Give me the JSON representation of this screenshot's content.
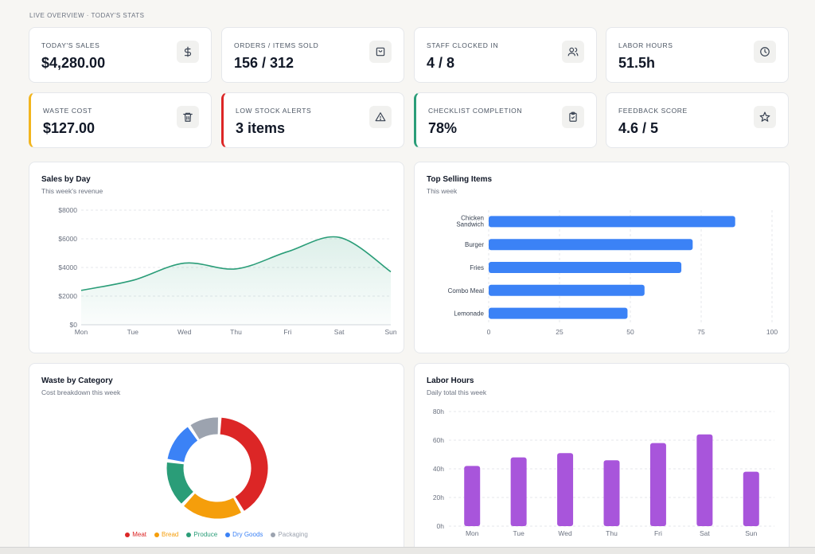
{
  "header": {
    "title": "LIVE OVERVIEW · TODAY'S STATS"
  },
  "stats": [
    {
      "label": "TODAY'S SALES",
      "value": "$4,280.00",
      "icon": "dollar-icon"
    },
    {
      "label": "ORDERS / ITEMS SOLD",
      "value": "156 / 312",
      "icon": "bag-icon"
    },
    {
      "label": "STAFF CLOCKED IN",
      "value": "4 / 8",
      "icon": "users-icon"
    },
    {
      "label": "LABOR HOURS",
      "value": "51.5h",
      "icon": "clock-icon"
    },
    {
      "label": "WASTE COST",
      "value": "$127.00",
      "icon": "trash-icon",
      "accent": "#f2b51e"
    },
    {
      "label": "LOW STOCK ALERTS",
      "value": "3 items",
      "icon": "alert-triangle-icon",
      "accent": "#dc2626"
    },
    {
      "label": "CHECKLIST COMPLETION",
      "value": "78%",
      "icon": "clipboard-check-icon",
      "accent": "#2a9d78"
    },
    {
      "label": "FEEDBACK SCORE",
      "value": "4.6 / 5",
      "icon": "star-icon"
    }
  ],
  "cards": {
    "sales": {
      "title": "Sales by Day",
      "subtitle": "This week's revenue"
    },
    "top": {
      "title": "Top Selling Items",
      "subtitle": "This week"
    },
    "waste": {
      "title": "Waste by Category",
      "subtitle": "Cost breakdown this week"
    },
    "labor": {
      "title": "Labor Hours",
      "subtitle": "Daily total this week"
    }
  },
  "colors": {
    "sales_line": "#2a9d78",
    "top_bar": "#3b82f6",
    "labor_bar": "#a855db",
    "waste": [
      "#dc2626",
      "#f59e0b",
      "#2a9d78",
      "#3b82f6",
      "#9ca3af"
    ]
  },
  "chart_data": [
    {
      "type": "area",
      "title": "Sales by Day",
      "subtitle": "This week's revenue",
      "x": [
        "Mon",
        "Tue",
        "Wed",
        "Thu",
        "Fri",
        "Sat",
        "Sun"
      ],
      "values": [
        2400,
        3100,
        4300,
        3900,
        5100,
        6100,
        3700
      ],
      "yticks": [
        "$0",
        "$2000",
        "$4000",
        "$6000",
        "$8000"
      ],
      "ylim": [
        0,
        8000
      ],
      "grid": true
    },
    {
      "type": "bar",
      "orientation": "horizontal",
      "title": "Top Selling Items",
      "subtitle": "This week",
      "categories": [
        "Chicken Sandwich",
        "Burger",
        "Fries",
        "Combo Meal",
        "Lemonade"
      ],
      "values": [
        87,
        72,
        68,
        55,
        49
      ],
      "xticks": [
        "0",
        "25",
        "50",
        "75",
        "100"
      ],
      "xlim": [
        0,
        100
      ],
      "grid": true
    },
    {
      "type": "pie",
      "donut": true,
      "title": "Waste by Category",
      "subtitle": "Cost breakdown this week",
      "categories": [
        "Meat",
        "Bread",
        "Produce",
        "Dry Goods",
        "Packaging"
      ],
      "values": [
        40,
        20,
        15,
        13,
        10
      ],
      "legend": "bottom"
    },
    {
      "type": "bar",
      "title": "Labor Hours",
      "subtitle": "Daily total this week",
      "categories": [
        "Mon",
        "Tue",
        "Wed",
        "Thu",
        "Fri",
        "Sat",
        "Sun"
      ],
      "values": [
        42,
        48,
        51,
        46,
        58,
        64,
        38
      ],
      "yticks": [
        "0h",
        "20h",
        "40h",
        "60h",
        "80h"
      ],
      "ylim": [
        0,
        80
      ],
      "grid": true
    }
  ]
}
